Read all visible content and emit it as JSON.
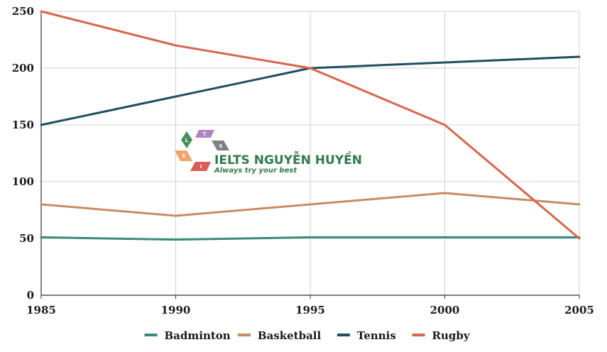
{
  "chart_data": {
    "type": "line",
    "title": "",
    "xlabel": "",
    "ylabel": "",
    "x": [
      1985,
      1990,
      1995,
      2000,
      2005
    ],
    "xlim": [
      1985,
      2005
    ],
    "ylim": [
      0,
      250
    ],
    "y_ticks": [
      0,
      50,
      100,
      150,
      200,
      250
    ],
    "grid": true,
    "legend_position": "bottom",
    "series": [
      {
        "name": "Badminton",
        "color": "#3a8a7c",
        "values": [
          51,
          49,
          51,
          51,
          51
        ]
      },
      {
        "name": "Basketball",
        "color": "#c98b63",
        "values": [
          80,
          70,
          80,
          90,
          80
        ]
      },
      {
        "name": "Tennis",
        "color": "#1f4e5f",
        "values": [
          150,
          175,
          200,
          205,
          210
        ]
      },
      {
        "name": "Rugby",
        "color": "#d9654b",
        "values": [
          250,
          220,
          200,
          150,
          50
        ]
      }
    ]
  },
  "watermark": {
    "title": "IELTS NGUYỄN HUYỀN",
    "subtitle": "Always try your best",
    "logo_letters": [
      "L",
      "T",
      "S",
      "E",
      "I"
    ],
    "title_color": "#2f7a4a",
    "subtitle_color": "#2f7a4a"
  }
}
